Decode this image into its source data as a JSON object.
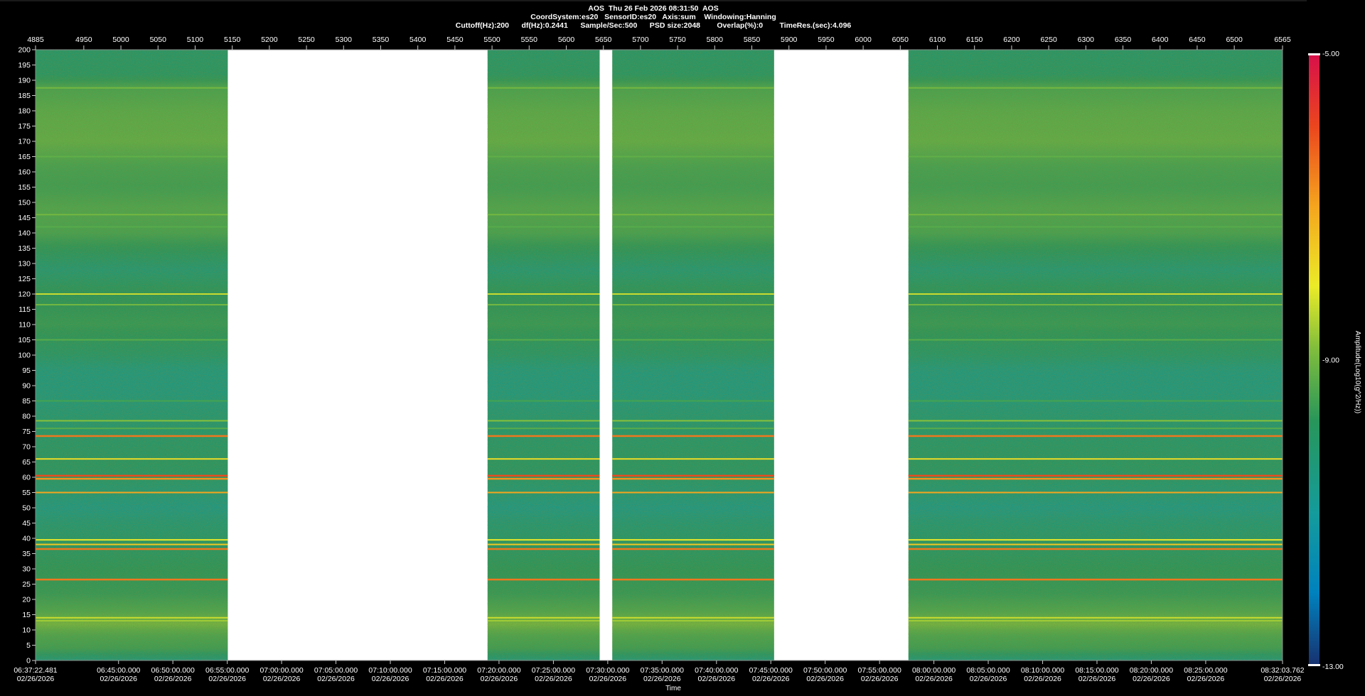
{
  "header": {
    "line1": "AOS  Thu 26 Feb 2026 08:31:50  AOS",
    "line2": "CoordSystem:es20   SensorID:es20   Axis:sum    Windowing:Hanning",
    "line3": "Cuttoff(Hz):200      df(Hz):0.2441      Sample/Sec:500      PSD size:2048        Overlap(%):0        TimeRes.(sec):4.096"
  },
  "chart_data": {
    "type": "heatmap",
    "title": "AOS  Thu 26 Feb 2026 08:31:50  AOS",
    "xlabel": "Time",
    "ylabel": "",
    "colorbar_label": "Amplitude(Log10(g^2/Hz))",
    "colorbar_ticks": [
      "-5.00",
      "-9.00",
      "-13.00"
    ],
    "colorbar_range": [
      -13,
      -5
    ],
    "ylim": [
      0,
      200
    ],
    "y_ticks": [
      0,
      5,
      10,
      15,
      20,
      25,
      30,
      35,
      40,
      45,
      50,
      55,
      60,
      65,
      70,
      75,
      80,
      85,
      90,
      95,
      100,
      105,
      110,
      115,
      120,
      125,
      130,
      135,
      140,
      145,
      150,
      155,
      160,
      165,
      170,
      175,
      180,
      185,
      190,
      195,
      200
    ],
    "top_axis_range": [
      4885,
      6565
    ],
    "top_ticks": [
      "4885",
      "4950",
      "5000",
      "5050",
      "5100",
      "5150",
      "5200",
      "5250",
      "5300",
      "5350",
      "5400",
      "5450",
      "5500",
      "5550",
      "5600",
      "5650",
      "5700",
      "5750",
      "5800",
      "5850",
      "5900",
      "5950",
      "6000",
      "6050",
      "6100",
      "6150",
      "6200",
      "6250",
      "6300",
      "6350",
      "6400",
      "6450",
      "6500",
      "6565"
    ],
    "top_tick_values": [
      4885,
      4950,
      5000,
      5050,
      5100,
      5150,
      5200,
      5250,
      5300,
      5350,
      5400,
      5450,
      5500,
      5550,
      5600,
      5650,
      5700,
      5750,
      5800,
      5850,
      5900,
      5950,
      6000,
      6050,
      6100,
      6150,
      6200,
      6250,
      6300,
      6350,
      6400,
      6450,
      6500,
      6565
    ],
    "time_ticks": [
      {
        "time": "06:37:22.481",
        "date": "02/26/2026",
        "value": 4885
      },
      {
        "time": "06:45:00.000",
        "date": "02/26/2026",
        "value": 4996.8
      },
      {
        "time": "06:50:00.000",
        "date": "02/26/2026",
        "value": 5070
      },
      {
        "time": "06:55:00.000",
        "date": "02/26/2026",
        "value": 5143.3
      },
      {
        "time": "07:00:00.000",
        "date": "02/26/2026",
        "value": 5216.5
      },
      {
        "time": "07:05:00.000",
        "date": "02/26/2026",
        "value": 5289.7
      },
      {
        "time": "07:10:00.000",
        "date": "02/26/2026",
        "value": 5363
      },
      {
        "time": "07:15:00.000",
        "date": "02/26/2026",
        "value": 5436.2
      },
      {
        "time": "07:20:00.000",
        "date": "02/26/2026",
        "value": 5509.4
      },
      {
        "time": "07:25:00.000",
        "date": "02/26/2026",
        "value": 5582.7
      },
      {
        "time": "07:30:00.000",
        "date": "02/26/2026",
        "value": 5655.9
      },
      {
        "time": "07:35:00.000",
        "date": "02/26/2026",
        "value": 5729.1
      },
      {
        "time": "07:40:00.000",
        "date": "02/26/2026",
        "value": 5802.4
      },
      {
        "time": "07:45:00.000",
        "date": "02/26/2026",
        "value": 5875.6
      },
      {
        "time": "07:50:00.000",
        "date": "02/26/2026",
        "value": 5948.8
      },
      {
        "time": "07:55:00.000",
        "date": "02/26/2026",
        "value": 6022.1
      },
      {
        "time": "08:00:00.000",
        "date": "02/26/2026",
        "value": 6095.3
      },
      {
        "time": "08:05:00.000",
        "date": "02/26/2026",
        "value": 6168.5
      },
      {
        "time": "08:10:00.000",
        "date": "02/26/2026",
        "value": 6241.8
      },
      {
        "time": "08:15:00.000",
        "date": "02/26/2026",
        "value": 6315
      },
      {
        "time": "08:20:00.000",
        "date": "02/26/2026",
        "value": 6388.2
      },
      {
        "time": "08:25:00.000",
        "date": "02/26/2026",
        "value": 6461.5
      },
      {
        "time": "08:32:03.762",
        "date": "02/26/2026",
        "value": 6565
      }
    ],
    "data_segments": [
      [
        4885,
        5144
      ],
      [
        5494,
        5645
      ],
      [
        5662,
        5880
      ],
      [
        6061,
        6565
      ]
    ],
    "gaps": [
      [
        5144,
        5494
      ],
      [
        5645,
        5662
      ],
      [
        5880,
        6061
      ]
    ],
    "lines_hz": [
      {
        "hz": 187.5,
        "level": -9.0
      },
      {
        "hz": 165,
        "level": -9.2
      },
      {
        "hz": 146,
        "level": -9.0
      },
      {
        "hz": 142,
        "level": -9.3
      },
      {
        "hz": 120,
        "level": -8.3
      },
      {
        "hz": 116.5,
        "level": -9.0
      },
      {
        "hz": 105,
        "level": -9.3
      },
      {
        "hz": 85,
        "level": -9.5
      },
      {
        "hz": 78.5,
        "level": -8.8
      },
      {
        "hz": 76,
        "level": -9.3
      },
      {
        "hz": 73.5,
        "level": -6.5
      },
      {
        "hz": 66,
        "level": -7.8
      },
      {
        "hz": 60.5,
        "level": -6.0
      },
      {
        "hz": 59.5,
        "level": -6.8
      },
      {
        "hz": 55,
        "level": -7.0
      },
      {
        "hz": 39.5,
        "level": -8.0
      },
      {
        "hz": 38,
        "level": -7.5
      },
      {
        "hz": 36.5,
        "level": -6.5
      },
      {
        "hz": 26.5,
        "level": -6.5
      },
      {
        "hz": 14,
        "level": -8.3
      },
      {
        "hz": 13,
        "level": -8.6
      }
    ]
  }
}
